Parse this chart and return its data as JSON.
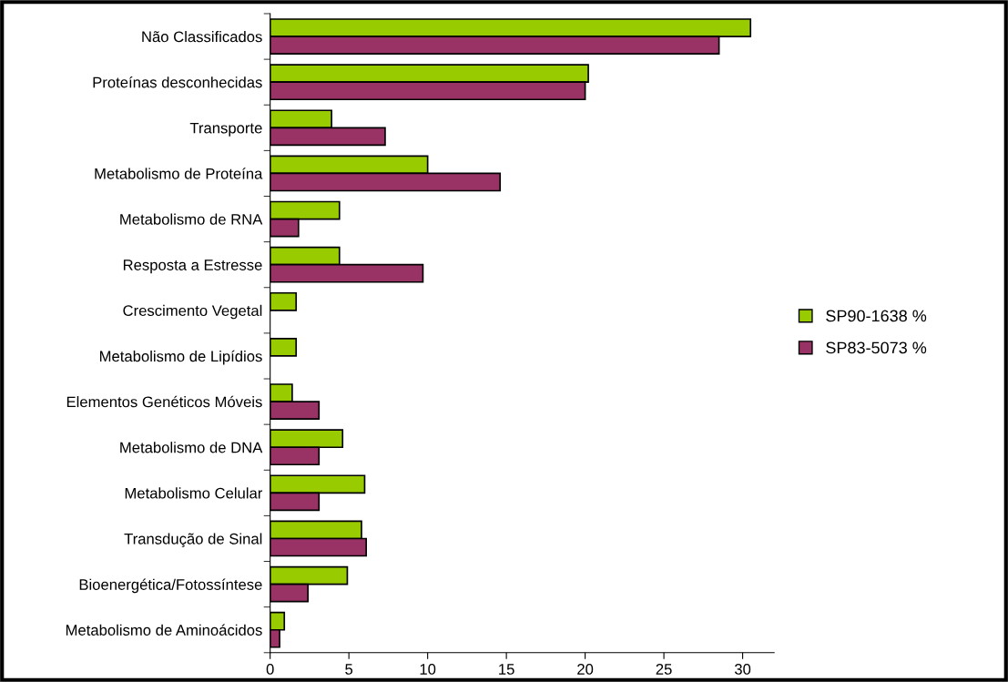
{
  "chart_data": {
    "type": "bar",
    "orientation": "horizontal",
    "categories": [
      "Não Classificados",
      "Proteínas desconhecidas",
      "Transporte",
      "Metabolismo de Proteína",
      "Metabolismo de RNA",
      "Resposta a Estresse",
      "Crescimento Vegetal",
      "Metabolismo de Lipídios",
      "Elementos Genéticos Móveis",
      "Metabolismo de DNA",
      "Metabolismo Celular",
      "Transdução de Sinal",
      "Bioenergética/Fotossíntese",
      "Metabolismo de Aminoácidos"
    ],
    "series": [
      {
        "name": "SP90-1638 %",
        "color": "#99cc00",
        "values": [
          30.5,
          20.2,
          3.9,
          10.0,
          4.4,
          4.4,
          1.65,
          1.65,
          1.4,
          4.6,
          6.0,
          5.8,
          4.9,
          0.9
        ]
      },
      {
        "name": "SP83-5073 %",
        "color": "#993366",
        "values": [
          28.5,
          20.0,
          7.3,
          14.6,
          1.8,
          9.7,
          null,
          null,
          3.1,
          3.1,
          3.1,
          6.1,
          2.4,
          0.6
        ]
      }
    ],
    "xlim": [
      0,
      32
    ],
    "xticks": [
      0,
      5,
      10,
      15,
      20,
      25,
      30
    ],
    "grid": false,
    "legend": "right"
  }
}
